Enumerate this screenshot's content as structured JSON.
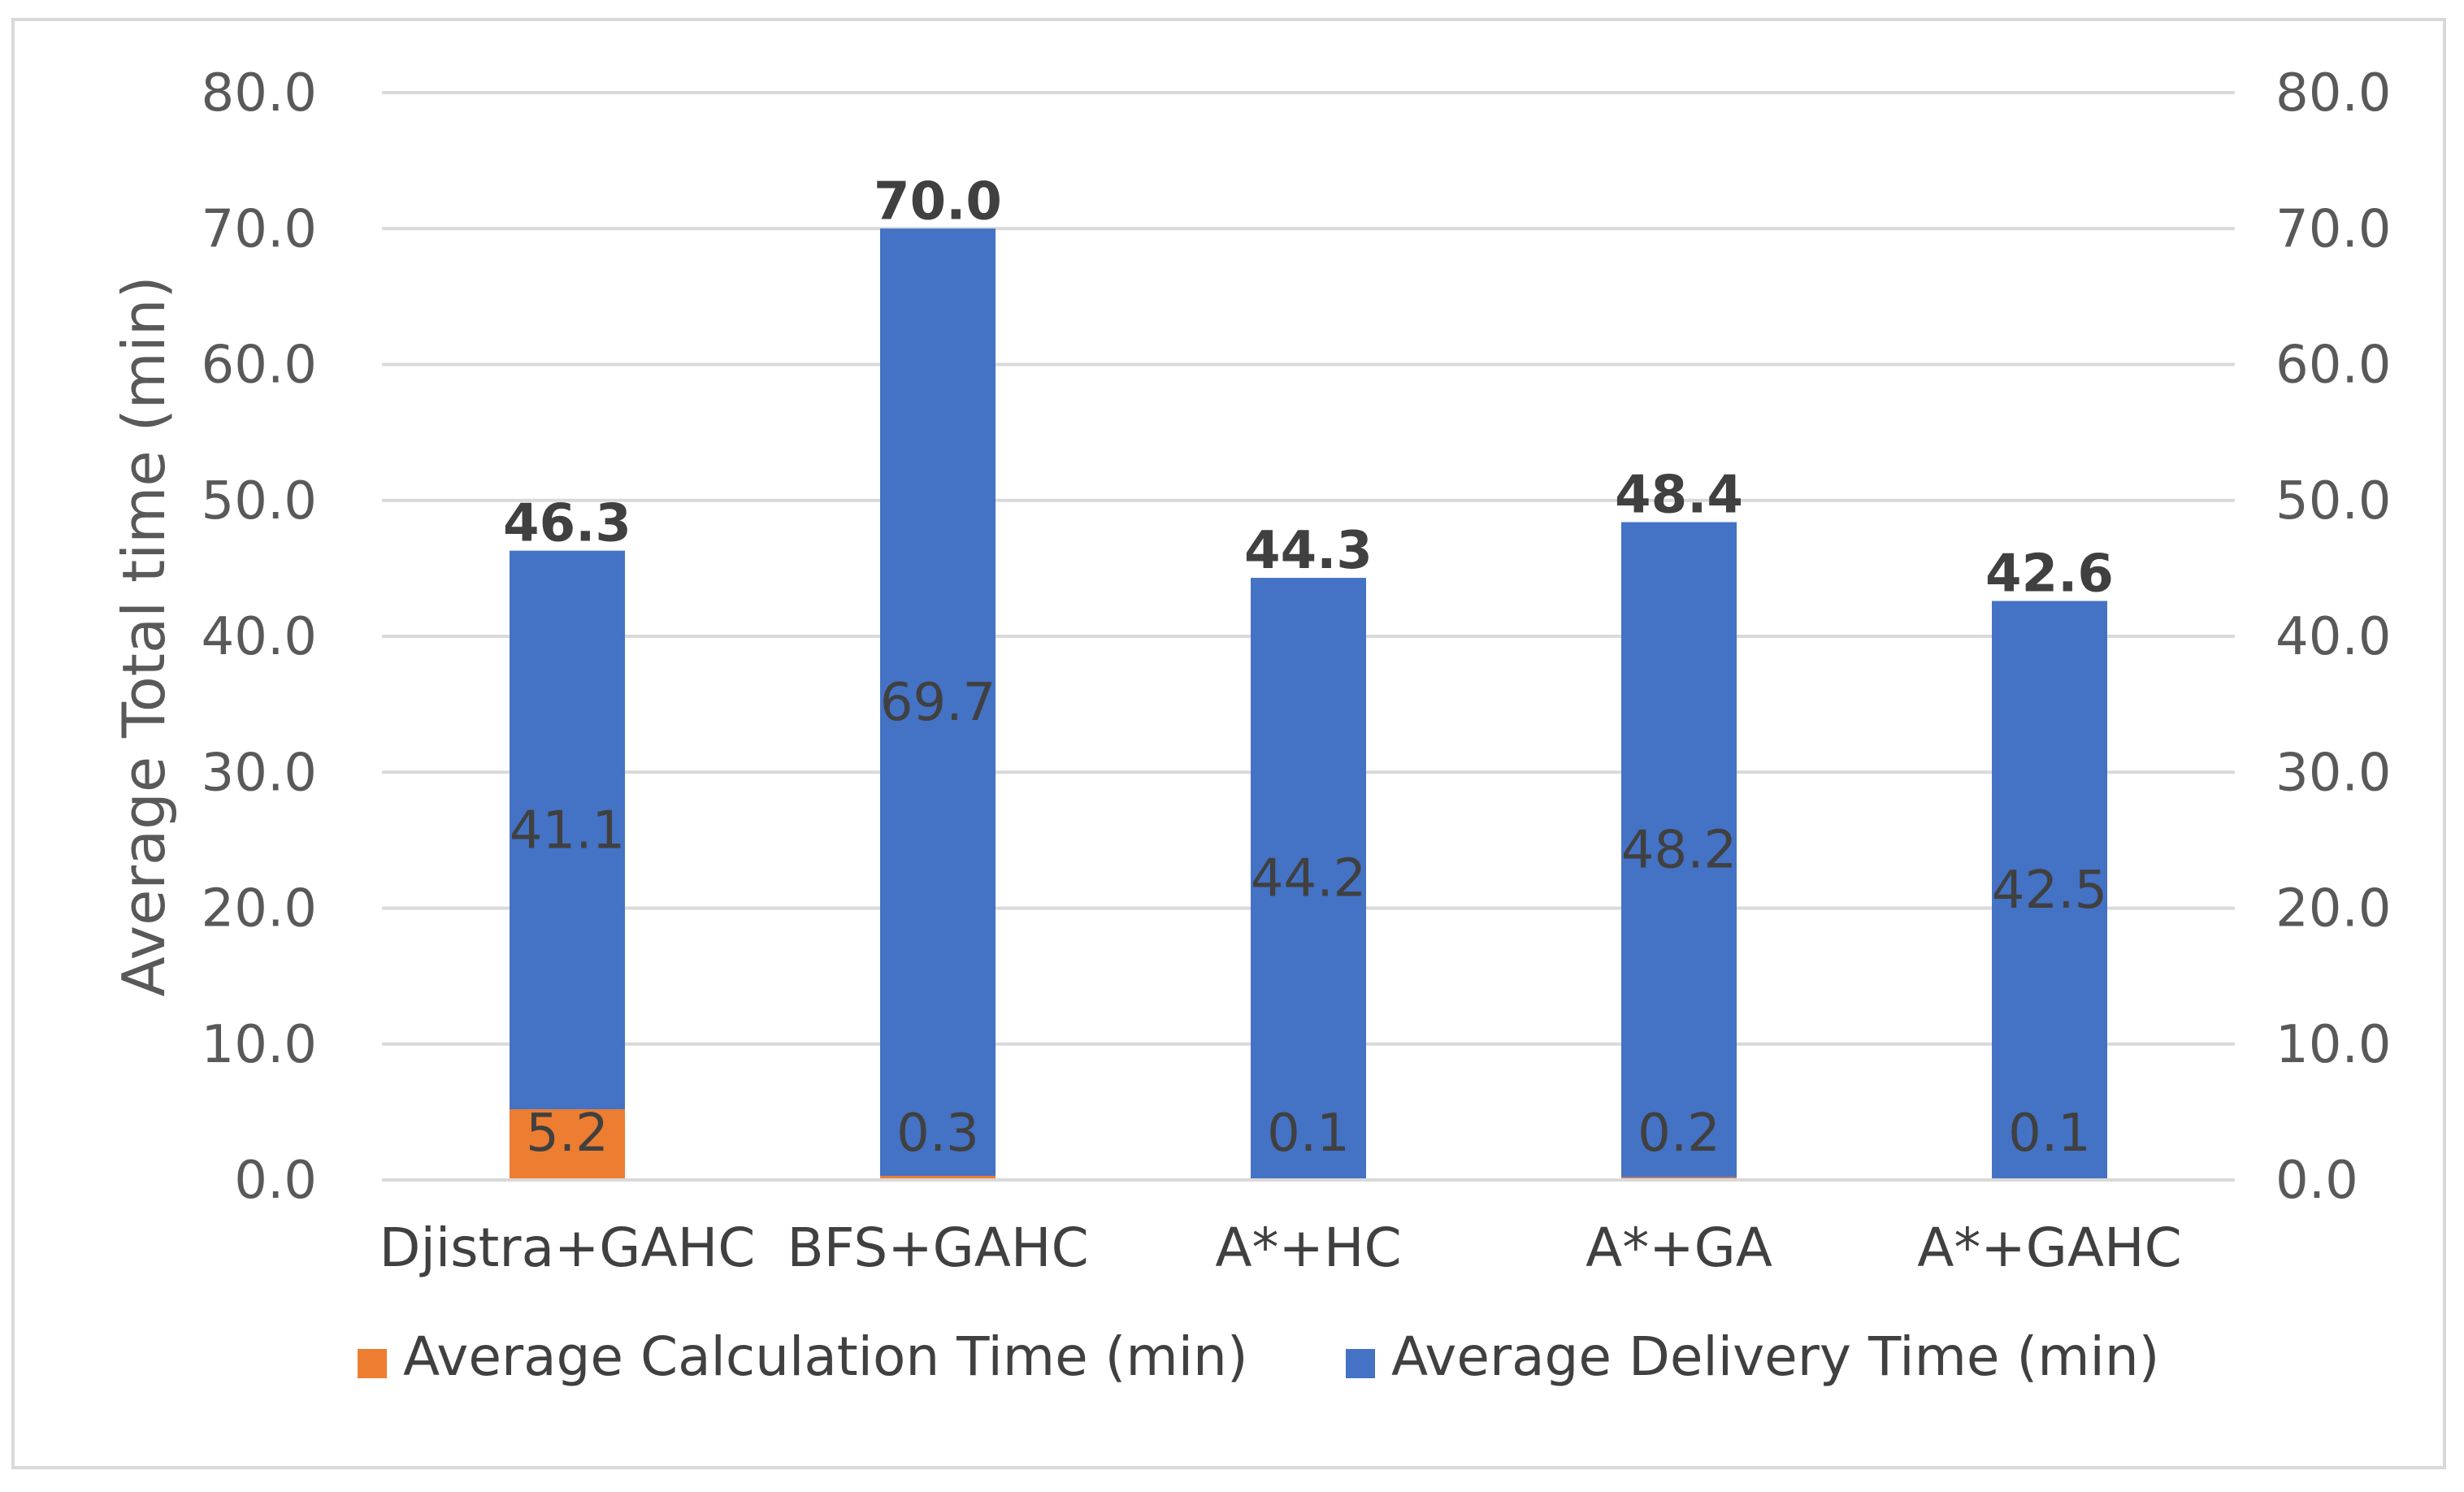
{
  "chart_data": {
    "type": "bar",
    "stacked": true,
    "title": "",
    "xlabel": "",
    "ylabel": "Average Total time (min)",
    "ylim": [
      0,
      80
    ],
    "yticks": [
      "0.0",
      "10.0",
      "20.0",
      "30.0",
      "40.0",
      "50.0",
      "60.0",
      "70.0",
      "80.0"
    ],
    "grid": true,
    "secondary_axis": true,
    "categories": [
      "Djistra+GAHC",
      "BFS+GAHC",
      "A*+HC",
      "A*+GA",
      "A*+GAHC"
    ],
    "series": [
      {
        "name": "Average Calculation Time (min)",
        "color": "#ed7d31",
        "values": [
          5.2,
          0.3,
          0.1,
          0.2,
          0.1
        ],
        "labels": [
          "5.2",
          "0.3",
          "0.1",
          "0.2",
          "0.1"
        ]
      },
      {
        "name": "Average Delivery Time (min)",
        "color": "#4472c4",
        "values": [
          41.1,
          69.7,
          44.2,
          48.2,
          42.5
        ],
        "labels": [
          "41.1",
          "69.7",
          "44.2",
          "48.2",
          "42.5"
        ]
      }
    ],
    "totals": [
      "46.3",
      "70.0",
      "44.3",
      "48.4",
      "42.6"
    ],
    "legend_position": "bottom"
  }
}
